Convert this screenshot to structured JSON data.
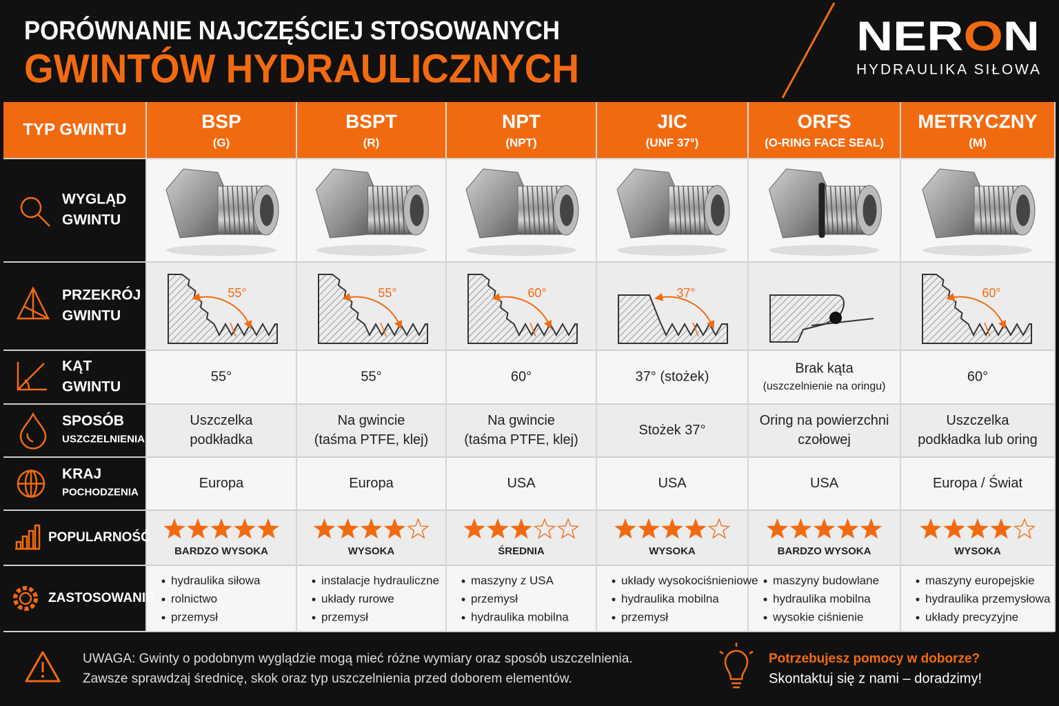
{
  "header": {
    "title_line1": "PORÓWNANIE NAJCZĘŚCIEJ STOSOWANYCH",
    "title_line2": "GWINTÓW HYDRAULICZNYCH",
    "brand_start": "NER",
    "brand_accent": "O",
    "brand_end": "N",
    "tagline": "HYDRAULIKA SIŁOWA"
  },
  "table": {
    "corner": "TYP GWINTU",
    "row_labels": [
      [
        "WYGLĄD",
        "GWINTU"
      ],
      [
        "PRZEKRÓJ",
        "GWINTU"
      ],
      [
        "KĄT",
        "GWINTU"
      ],
      [
        "SPOSÓB",
        "USZCZELNIENIA"
      ],
      [
        "KRAJ",
        "POCHODZENIA"
      ],
      [
        "POPULARNOŚĆ"
      ],
      [
        "ZASTOSOWANIE"
      ]
    ],
    "columns": [
      {
        "name": "BSP",
        "code": "(G)",
        "diagram_angle": "55°",
        "angle": [
          "55°"
        ],
        "sealing": [
          "Uszczelka",
          "podkładka"
        ],
        "origin": "Europa",
        "stars": 5,
        "popularity": "BARDZO WYSOKA",
        "applications": [
          "hydraulika siłowa",
          "rolnictwo",
          "przemysł"
        ]
      },
      {
        "name": "BSPT",
        "code": "(R)",
        "diagram_angle": "55°",
        "angle": [
          "55°"
        ],
        "sealing": [
          "Na gwincie",
          "(taśma PTFE, klej)"
        ],
        "origin": "Europa",
        "stars": 4,
        "popularity": "WYSOKA",
        "applications": [
          "instalacje hydrauliczne",
          "układy rurowe",
          "przemysł"
        ]
      },
      {
        "name": "NPT",
        "code": "(NPT)",
        "diagram_angle": "60°",
        "angle": [
          "60°"
        ],
        "sealing": [
          "Na gwincie",
          "(taśma PTFE, klej)"
        ],
        "origin": "USA",
        "stars": 3,
        "popularity": "ŚREDNIA",
        "applications": [
          "maszyny z USA",
          "przemysł",
          "hydraulika mobilna"
        ]
      },
      {
        "name": "JIC",
        "code": "(UNF 37°)",
        "diagram_angle": "37°",
        "angle": [
          "37° (stożek)"
        ],
        "sealing": [
          "Stożek 37°"
        ],
        "origin": "USA",
        "stars": 4,
        "popularity": "WYSOKA",
        "applications": [
          "układy wysokociśnieniowe",
          "hydraulika mobilna",
          "przemysł"
        ]
      },
      {
        "name": "ORFS",
        "code": "(O-RING FACE SEAL)",
        "angle": [
          "Brak kąta",
          "(uszczelnienie na oringu)"
        ],
        "sealing": [
          "Oring na powierzchni",
          "czołowej"
        ],
        "origin": "USA",
        "stars": 5,
        "popularity": "BARDZO WYSOKA",
        "applications": [
          "maszyny budowlane",
          "hydraulika mobilna",
          "wysokie ciśnienie"
        ]
      },
      {
        "name": "METRYCZNY",
        "code": "(M)",
        "diagram_angle": "60°",
        "angle": [
          "60°"
        ],
        "sealing": [
          "Uszczelka",
          "podkładka lub oring"
        ],
        "origin": "Europa / Świat",
        "stars": 4,
        "popularity": "WYSOKA",
        "applications": [
          "maszyny europejskie",
          "hydraulika przemysłowa",
          "układy precyzyjne"
        ]
      }
    ]
  },
  "footer": {
    "warning": [
      "UWAGA: Gwinty o podobnym wyglądzie mogą mieć różne wymiary oraz sposób uszczelnienia.",
      "Zawsze sprawdzaj średnicę, skok oraz typ uszczelnienia przed doborem elementów."
    ],
    "help_question": "Potrzebujesz pomocy w doborze?",
    "help_text": "Skontaktuj się z nami – doradzimy!"
  }
}
